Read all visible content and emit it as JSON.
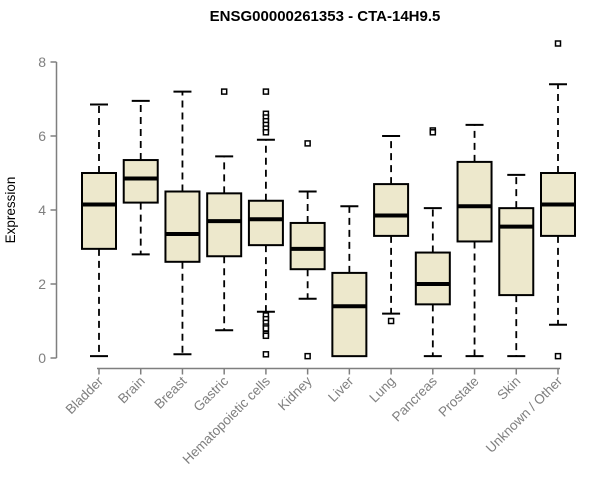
{
  "title": "ENSG00000261353 - CTA-14H9.5",
  "chart_data": {
    "type": "boxplot",
    "title": "ENSG00000261353 - CTA-14H9.5",
    "ylabel": "Expression",
    "xlabel": "",
    "ylim": [
      0,
      8.6
    ],
    "y_ticks": [
      0,
      2,
      4,
      6,
      8
    ],
    "grid": false,
    "legend": "none",
    "box_fill": "#EDE8CC",
    "box_stroke": "#000000",
    "median_color": "#000000",
    "axis_color": "#7F7F7F",
    "categories": [
      "Bladder",
      "Brain",
      "Breast",
      "Gastric",
      "Hematopoietic cells",
      "Kidney",
      "Liver",
      "Lung",
      "Pancreas",
      "Prostate",
      "Skin",
      "Unknown / Other"
    ],
    "series": [
      {
        "label": "Bladder",
        "whislo": 0.05,
        "q1": 2.95,
        "med": 4.15,
        "q3": 5.0,
        "whishi": 6.85,
        "outliers": []
      },
      {
        "label": "Brain",
        "whislo": 2.8,
        "q1": 4.2,
        "med": 4.85,
        "q3": 5.35,
        "whishi": 6.95,
        "outliers": []
      },
      {
        "label": "Breast",
        "whislo": 0.1,
        "q1": 2.6,
        "med": 3.35,
        "q3": 4.5,
        "whishi": 7.2,
        "outliers": []
      },
      {
        "label": "Gastric",
        "whislo": 0.75,
        "q1": 2.75,
        "med": 3.7,
        "q3": 4.45,
        "whishi": 5.45,
        "outliers": [
          7.2
        ]
      },
      {
        "label": "Hematopoietic cells",
        "whislo": 1.25,
        "q1": 3.05,
        "med": 3.75,
        "q3": 4.25,
        "whishi": 5.9,
        "outliers": [
          7.2,
          6.6,
          6.5,
          6.4,
          6.3,
          6.2,
          6.1,
          1.15,
          1.05,
          0.95,
          0.85,
          0.8,
          0.65,
          0.6,
          0.1
        ]
      },
      {
        "label": "Kidney",
        "whislo": 1.6,
        "q1": 2.4,
        "med": 2.95,
        "q3": 3.65,
        "whishi": 4.5,
        "outliers": [
          5.8,
          0.05
        ]
      },
      {
        "label": "Liver",
        "whislo": 0.05,
        "q1": 0.05,
        "med": 1.4,
        "q3": 2.3,
        "whishi": 4.1,
        "outliers": []
      },
      {
        "label": "Lung",
        "whislo": 1.2,
        "q1": 3.3,
        "med": 3.85,
        "q3": 4.7,
        "whishi": 6.0,
        "outliers": [
          1.0
        ]
      },
      {
        "label": "Pancreas",
        "whislo": 0.05,
        "q1": 1.45,
        "med": 2.0,
        "q3": 2.85,
        "whishi": 4.05,
        "outliers": [
          6.15,
          6.1
        ]
      },
      {
        "label": "Prostate",
        "whislo": 0.05,
        "q1": 3.15,
        "med": 4.1,
        "q3": 5.3,
        "whishi": 6.3,
        "outliers": []
      },
      {
        "label": "Skin",
        "whislo": 0.05,
        "q1": 1.7,
        "med": 3.55,
        "q3": 4.05,
        "whishi": 4.95,
        "outliers": []
      },
      {
        "label": "Unknown / Other",
        "whislo": 0.9,
        "q1": 3.3,
        "med": 4.15,
        "q3": 5.0,
        "whishi": 7.4,
        "outliers": [
          8.5,
          0.05
        ]
      }
    ]
  }
}
